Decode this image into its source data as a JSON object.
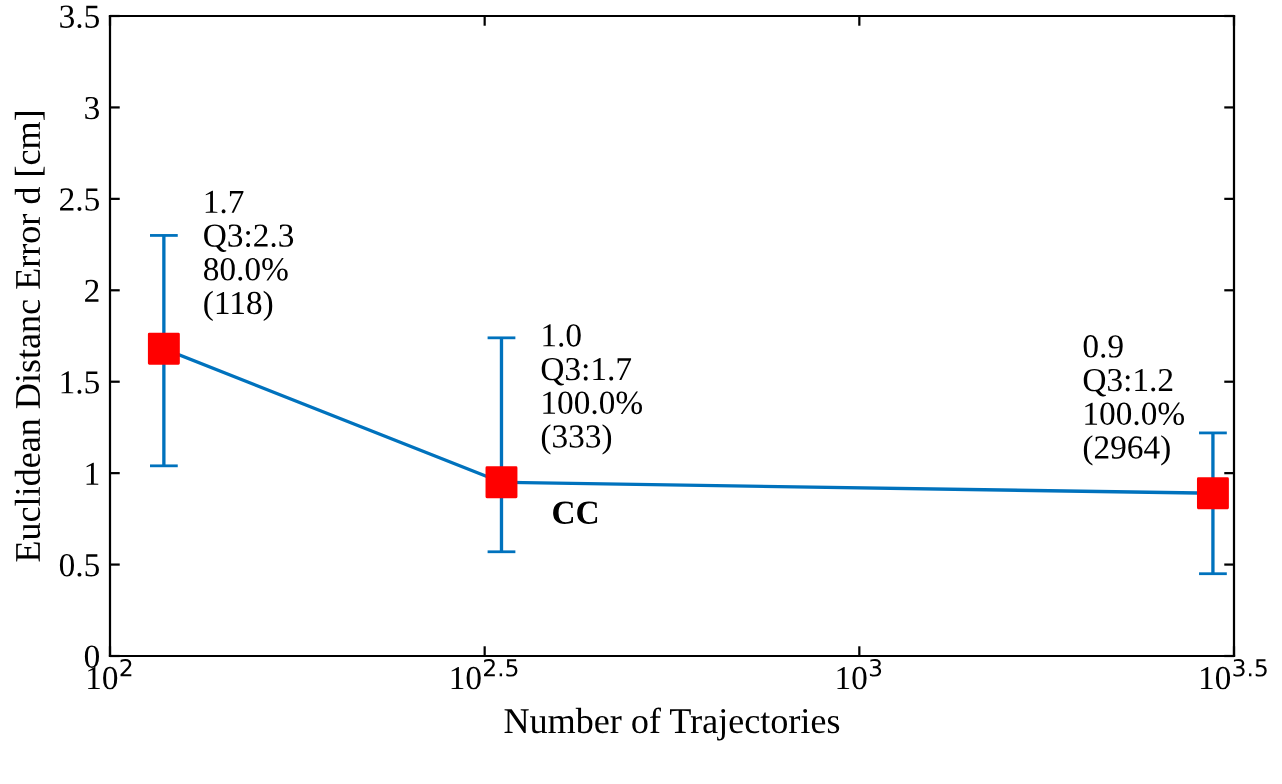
{
  "chart_data": {
    "type": "line",
    "xlabel": "Number of Trajectories",
    "ylabel": "Euclidean Distanc Error d [cm]",
    "x": [
      118,
      333,
      2964
    ],
    "series": [
      {
        "color": "#0072bd",
        "values": [
          1.68,
          0.95,
          0.89
        ],
        "colors": [
          "#ff0000",
          "#ff0000",
          "#ff0000"
        ],
        "errors": [
          [
            1.04,
            2.3
          ],
          [
            0.57,
            1.74
          ],
          [
            0.45,
            1.22
          ]
        ],
        "marker": "square"
      }
    ],
    "log": "x",
    "xlim": [
      100,
      3162.3
    ],
    "xticks": [
      {
        "value": 100,
        "label": "10$^{2}$"
      },
      {
        "value": 316.23,
        "label": "10$^{2.5}$"
      },
      {
        "value": 1000,
        "label": "10$^{3}$"
      },
      {
        "value": 3162.3,
        "label": "10$^{3.5}$"
      }
    ],
    "ylim": [
      0,
      3.5
    ],
    "yticks": [
      0,
      0.5,
      1,
      1.5,
      2,
      2.5,
      3,
      3.5
    ],
    "grid": false,
    "annotations": [
      {
        "text": "1.7\nQ3:2.3\n80.0%\n(118)",
        "x": 118,
        "y": 1.68
      },
      {
        "text": "1.0\nQ3:1.7\n100.0%\n(333)",
        "x": 333,
        "y": 0.95
      },
      {
        "text": "0.9\nQ3:1.2\n100.0%\n(2964)",
        "x": 2964,
        "y": 0.89
      },
      {
        "text": "CC",
        "x": 333,
        "y": 0.95
      }
    ]
  }
}
